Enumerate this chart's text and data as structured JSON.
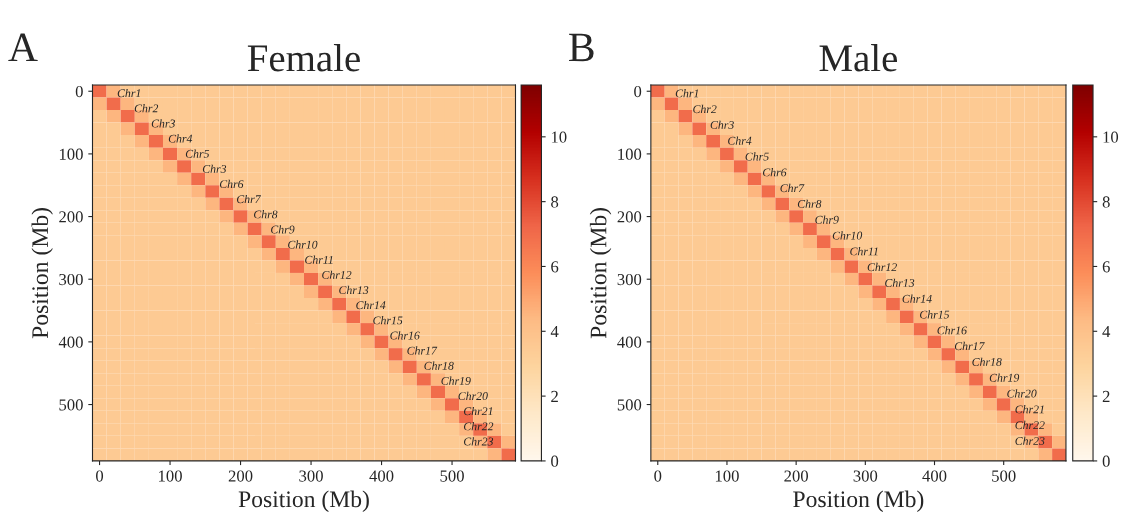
{
  "chart_data": [
    {
      "type": "heatmap",
      "title": "Female",
      "xlabel": "Position (Mb)",
      "ylabel": "Position (Mb)",
      "categories": [
        "0",
        null,
        null,
        null,
        null,
        "100",
        null,
        null,
        null,
        null,
        "200",
        null,
        null,
        null,
        null,
        "300",
        null,
        null,
        null,
        null,
        "400",
        null,
        null,
        null,
        null,
        "500",
        null,
        null,
        null,
        null
      ],
      "y_categories": [
        "0",
        null,
        null,
        null,
        null,
        "100",
        null,
        null,
        null,
        null,
        "200",
        null,
        null,
        null,
        null,
        "300",
        null,
        null,
        null,
        null,
        "400",
        null,
        null,
        null,
        null,
        "500",
        null,
        null,
        null,
        null
      ],
      "cells": [
        [
          7,
          4.5,
          3.5,
          3.5,
          3.5,
          3.5,
          3.5,
          3.5,
          3.5,
          3.5,
          3.5,
          3.5,
          3.5,
          3.5,
          3.5,
          3.5,
          3.5,
          3.5,
          3.5,
          3.5,
          3.5,
          3.5,
          3.5,
          3.5,
          3.5,
          3.5,
          3.5,
          3.5,
          3.5,
          3.5
        ],
        [
          4.5,
          7,
          4.5,
          3.5,
          3.5,
          3.5,
          3.5,
          3.5,
          3.5,
          3.5,
          3.5,
          3.5,
          3.5,
          3.5,
          3.5,
          3.5,
          3.5,
          3.5,
          3.5,
          3.5,
          3.5,
          3.5,
          3.5,
          3.5,
          3.5,
          3.5,
          3.5,
          3.5,
          3.5,
          3.5
        ],
        [
          3.5,
          4.5,
          7,
          4.5,
          3.5,
          3.5,
          3.5,
          3.5,
          3.5,
          3.5,
          3.5,
          3.5,
          3.5,
          3.5,
          3.5,
          3.5,
          3.5,
          3.5,
          3.5,
          3.5,
          3.5,
          3.5,
          3.5,
          3.5,
          3.5,
          3.5,
          3.5,
          3.5,
          3.5,
          3.5
        ],
        [
          3.5,
          3.5,
          4.5,
          7,
          4.5,
          3.5,
          3.5,
          3.5,
          3.5,
          3.5,
          3.5,
          3.5,
          3.5,
          3.5,
          3.5,
          3.5,
          3.5,
          3.5,
          3.5,
          3.5,
          3.5,
          3.5,
          3.5,
          3.5,
          3.5,
          3.5,
          3.5,
          3.5,
          3.5,
          3.5
        ],
        [
          3.5,
          3.5,
          3.5,
          4.5,
          7,
          4.5,
          3.5,
          3.5,
          3.5,
          3.5,
          3.5,
          3.5,
          3.5,
          3.5,
          3.5,
          3.5,
          3.5,
          3.5,
          3.5,
          3.5,
          3.5,
          3.5,
          3.5,
          3.5,
          3.5,
          3.5,
          3.5,
          3.5,
          3.5,
          3.5
        ],
        [
          3.5,
          3.5,
          3.5,
          3.5,
          4.5,
          7,
          4.5,
          3.5,
          3.5,
          3.5,
          3.5,
          3.5,
          3.5,
          3.5,
          3.5,
          3.5,
          3.5,
          3.5,
          3.5,
          3.5,
          3.5,
          3.5,
          3.5,
          3.5,
          3.5,
          3.5,
          3.5,
          3.5,
          3.5,
          3.5
        ],
        [
          3.5,
          3.5,
          3.5,
          3.5,
          3.5,
          4.5,
          7,
          4.5,
          3.5,
          3.5,
          3.5,
          3.5,
          3.5,
          3.5,
          3.5,
          3.5,
          3.5,
          3.5,
          3.5,
          3.5,
          3.5,
          3.5,
          3.5,
          3.5,
          3.5,
          3.5,
          3.5,
          3.5,
          3.5,
          3.5
        ],
        [
          3.5,
          3.5,
          3.5,
          3.5,
          3.5,
          3.5,
          4.5,
          7,
          4.5,
          3.5,
          3.5,
          3.5,
          3.5,
          3.5,
          3.5,
          3.5,
          3.5,
          3.5,
          3.5,
          3.5,
          3.5,
          3.5,
          3.5,
          3.5,
          3.5,
          3.5,
          3.5,
          3.5,
          3.5,
          3.5
        ],
        [
          3.5,
          3.5,
          3.5,
          3.5,
          3.5,
          3.5,
          3.5,
          4.5,
          7,
          4.5,
          3.5,
          3.5,
          3.5,
          3.5,
          3.5,
          3.5,
          3.5,
          3.5,
          3.5,
          3.5,
          3.5,
          3.5,
          3.5,
          3.5,
          3.5,
          3.5,
          3.5,
          3.5,
          3.5,
          3.5
        ],
        [
          3.5,
          3.5,
          3.5,
          3.5,
          3.5,
          3.5,
          3.5,
          3.5,
          4.5,
          7,
          4.5,
          3.5,
          3.5,
          3.5,
          3.5,
          3.5,
          3.5,
          3.5,
          3.5,
          3.5,
          3.5,
          3.5,
          3.5,
          3.5,
          3.5,
          3.5,
          3.5,
          3.5,
          3.5,
          3.5
        ],
        [
          3.5,
          3.5,
          3.5,
          3.5,
          3.5,
          3.5,
          3.5,
          3.5,
          3.5,
          4.5,
          7,
          4.5,
          3.5,
          3.5,
          3.5,
          3.5,
          3.5,
          3.5,
          3.5,
          3.5,
          3.5,
          3.5,
          3.5,
          3.5,
          3.5,
          3.5,
          3.5,
          3.5,
          3.5,
          3.5
        ],
        [
          3.5,
          3.5,
          3.5,
          3.5,
          3.5,
          3.5,
          3.5,
          3.5,
          3.5,
          3.5,
          4.5,
          7,
          4.5,
          3.5,
          3.5,
          3.5,
          3.5,
          3.5,
          3.5,
          3.5,
          3.5,
          3.5,
          3.5,
          3.5,
          3.5,
          3.5,
          3.5,
          3.5,
          3.5,
          3.5
        ],
        [
          3.5,
          3.5,
          3.5,
          3.5,
          3.5,
          3.5,
          3.5,
          3.5,
          3.5,
          3.5,
          3.5,
          4.5,
          7,
          4.5,
          3.5,
          3.5,
          3.5,
          3.5,
          3.5,
          3.5,
          3.5,
          3.5,
          3.5,
          3.5,
          3.5,
          3.5,
          3.5,
          3.5,
          3.5,
          3.5
        ],
        [
          3.5,
          3.5,
          3.5,
          3.5,
          3.5,
          3.5,
          3.5,
          3.5,
          3.5,
          3.5,
          3.5,
          3.5,
          4.5,
          7,
          4.5,
          3.5,
          3.5,
          3.5,
          3.5,
          3.5,
          3.5,
          3.5,
          3.5,
          3.5,
          3.5,
          3.5,
          3.5,
          3.5,
          3.5,
          3.5
        ],
        [
          3.5,
          3.5,
          3.5,
          3.5,
          3.5,
          3.5,
          3.5,
          3.5,
          3.5,
          3.5,
          3.5,
          3.5,
          3.5,
          4.5,
          7,
          4.5,
          3.5,
          3.5,
          3.5,
          3.5,
          3.5,
          3.5,
          3.5,
          3.5,
          3.5,
          3.5,
          3.5,
          3.5,
          3.5,
          3.5
        ],
        [
          3.5,
          3.5,
          3.5,
          3.5,
          3.5,
          3.5,
          3.5,
          3.5,
          3.5,
          3.5,
          3.5,
          3.5,
          3.5,
          3.5,
          4.5,
          7,
          4.5,
          3.5,
          3.5,
          3.5,
          3.5,
          3.5,
          3.5,
          3.5,
          3.5,
          3.5,
          3.5,
          3.5,
          3.5,
          3.5
        ],
        [
          3.5,
          3.5,
          3.5,
          3.5,
          3.5,
          3.5,
          3.5,
          3.5,
          3.5,
          3.5,
          3.5,
          3.5,
          3.5,
          3.5,
          3.5,
          4.5,
          7,
          4.5,
          3.5,
          3.5,
          3.5,
          3.5,
          3.5,
          3.5,
          3.5,
          3.5,
          3.5,
          3.5,
          3.5,
          3.5
        ],
        [
          3.5,
          3.5,
          3.5,
          3.5,
          3.5,
          3.5,
          3.5,
          3.5,
          3.5,
          3.5,
          3.5,
          3.5,
          3.5,
          3.5,
          3.5,
          3.5,
          4.5,
          7,
          4.5,
          3.5,
          3.5,
          3.5,
          3.5,
          3.5,
          3.5,
          3.5,
          3.5,
          3.5,
          3.5,
          3.5
        ],
        [
          3.5,
          3.5,
          3.5,
          3.5,
          3.5,
          3.5,
          3.5,
          3.5,
          3.5,
          3.5,
          3.5,
          3.5,
          3.5,
          3.5,
          3.5,
          3.5,
          3.5,
          4.5,
          7,
          4.5,
          3.5,
          3.5,
          3.5,
          3.5,
          3.5,
          3.5,
          3.5,
          3.5,
          3.5,
          3.5
        ],
        [
          3.5,
          3.5,
          3.5,
          3.5,
          3.5,
          3.5,
          3.5,
          3.5,
          3.5,
          3.5,
          3.5,
          3.5,
          3.5,
          3.5,
          3.5,
          3.5,
          3.5,
          3.5,
          4.5,
          7,
          4.5,
          3.5,
          3.5,
          3.5,
          3.5,
          3.5,
          3.5,
          3.5,
          3.5,
          3.5
        ],
        [
          3.5,
          3.5,
          3.5,
          3.5,
          3.5,
          3.5,
          3.5,
          3.5,
          3.5,
          3.5,
          3.5,
          3.5,
          3.5,
          3.5,
          3.5,
          3.5,
          3.5,
          3.5,
          3.5,
          4.5,
          7,
          4.5,
          3.5,
          3.5,
          3.5,
          3.5,
          3.5,
          3.5,
          3.5,
          3.5
        ],
        [
          3.5,
          3.5,
          3.5,
          3.5,
          3.5,
          3.5,
          3.5,
          3.5,
          3.5,
          3.5,
          3.5,
          3.5,
          3.5,
          3.5,
          3.5,
          3.5,
          3.5,
          3.5,
          3.5,
          3.5,
          4.5,
          7,
          4.5,
          3.5,
          3.5,
          3.5,
          3.5,
          3.5,
          3.5,
          3.5
        ],
        [
          3.5,
          3.5,
          3.5,
          3.5,
          3.5,
          3.5,
          3.5,
          3.5,
          3.5,
          3.5,
          3.5,
          3.5,
          3.5,
          3.5,
          3.5,
          3.5,
          3.5,
          3.5,
          3.5,
          3.5,
          3.5,
          4.5,
          7,
          4.5,
          3.5,
          3.5,
          3.5,
          3.5,
          3.5,
          3.5
        ],
        [
          3.5,
          3.5,
          3.5,
          3.5,
          3.5,
          3.5,
          3.5,
          3.5,
          3.5,
          3.5,
          3.5,
          3.5,
          3.5,
          3.5,
          3.5,
          3.5,
          3.5,
          3.5,
          3.5,
          3.5,
          3.5,
          3.5,
          4.5,
          7,
          4.5,
          3.5,
          3.5,
          3.5,
          3.5,
          3.5
        ],
        [
          3.5,
          3.5,
          3.5,
          3.5,
          3.5,
          3.5,
          3.5,
          3.5,
          3.5,
          3.5,
          3.5,
          3.5,
          3.5,
          3.5,
          3.5,
          3.5,
          3.5,
          3.5,
          3.5,
          3.5,
          3.5,
          3.5,
          3.5,
          4.5,
          7,
          4.5,
          3.5,
          3.5,
          3.5,
          3.5
        ],
        [
          3.5,
          3.5,
          3.5,
          3.5,
          3.5,
          3.5,
          3.5,
          3.5,
          3.5,
          3.5,
          3.5,
          3.5,
          3.5,
          3.5,
          3.5,
          3.5,
          3.5,
          3.5,
          3.5,
          3.5,
          3.5,
          3.5,
          3.5,
          3.5,
          4.5,
          7,
          4.5,
          3.5,
          3.5,
          3.5
        ],
        [
          3.5,
          3.5,
          3.5,
          3.5,
          3.5,
          3.5,
          3.5,
          3.5,
          3.5,
          3.5,
          3.5,
          3.5,
          3.5,
          3.5,
          3.5,
          3.5,
          3.5,
          3.5,
          3.5,
          3.5,
          3.5,
          3.5,
          3.5,
          3.5,
          3.5,
          4.5,
          7,
          4.5,
          3.5,
          3.5
        ],
        [
          3.5,
          3.5,
          3.5,
          3.5,
          3.5,
          3.5,
          3.5,
          3.5,
          3.5,
          3.5,
          3.5,
          3.5,
          3.5,
          3.5,
          3.5,
          3.5,
          3.5,
          3.5,
          3.5,
          3.5,
          3.5,
          3.5,
          3.5,
          3.5,
          3.5,
          3.5,
          4.5,
          7,
          4.5,
          3.5
        ],
        [
          3.5,
          3.5,
          3.5,
          3.5,
          3.5,
          3.5,
          3.5,
          3.5,
          3.5,
          3.5,
          3.5,
          3.5,
          3.5,
          3.5,
          3.5,
          3.5,
          3.5,
          3.5,
          3.5,
          3.5,
          3.5,
          3.5,
          3.5,
          3.5,
          3.5,
          3.5,
          3.5,
          4.5,
          7,
          4.5
        ],
        [
          3.5,
          3.5,
          3.5,
          3.5,
          3.5,
          3.5,
          3.5,
          3.5,
          3.5,
          3.5,
          3.5,
          3.5,
          3.5,
          3.5,
          3.5,
          3.5,
          3.5,
          3.5,
          3.5,
          3.5,
          3.5,
          3.5,
          3.5,
          3.5,
          3.5,
          3.5,
          3.5,
          3.5,
          4.5,
          7
        ]
      ],
      "clim": [
        0,
        11.6
      ],
      "cticks": [
        0,
        2,
        4,
        6,
        8,
        10
      ],
      "annotations": [
        "A",
        "Chr1",
        "Chr2",
        "Chr3",
        "Chr4",
        "Chr5",
        "Chr3",
        "Chr6",
        "Chr7",
        "Chr8",
        "Chr9",
        "Chr10",
        "Chr11",
        "Chr12",
        "Chr13",
        "Chr14",
        "Chr15",
        "Chr16",
        "Chr17",
        "Chr18",
        "Chr19",
        "Chr20",
        "Chr21",
        "Chr22",
        "Chr23"
      ]
    },
    {
      "type": "heatmap",
      "title": "Male",
      "xlabel": "Position (Mb)",
      "ylabel": "Position (Mb)",
      "categories": [
        "0",
        null,
        null,
        null,
        null,
        "100",
        null,
        null,
        null,
        null,
        "200",
        null,
        null,
        null,
        null,
        "300",
        null,
        null,
        null,
        null,
        "400",
        null,
        null,
        null,
        null,
        "500",
        null,
        null,
        null,
        null
      ],
      "y_categories": [
        "0",
        null,
        null,
        null,
        null,
        "100",
        null,
        null,
        null,
        null,
        "200",
        null,
        null,
        null,
        null,
        "300",
        null,
        null,
        null,
        null,
        "400",
        null,
        null,
        null,
        null,
        "500",
        null,
        null,
        null,
        null
      ],
      "cells": [
        [
          7,
          4.5,
          3.5,
          3.5,
          3.5,
          3.5,
          3.5,
          3.5,
          3.5,
          3.5,
          3.5,
          3.5,
          3.5,
          3.5,
          3.5,
          3.5,
          3.5,
          3.5,
          3.5,
          3.5,
          3.5,
          3.5,
          3.5,
          3.5,
          3.5,
          3.5,
          3.5,
          3.5,
          3.5,
          3.5
        ],
        [
          4.5,
          7,
          4.5,
          3.5,
          3.5,
          3.5,
          3.5,
          3.5,
          3.5,
          3.5,
          3.5,
          3.5,
          3.5,
          3.5,
          3.5,
          3.5,
          3.5,
          3.5,
          3.5,
          3.5,
          3.5,
          3.5,
          3.5,
          3.5,
          3.5,
          3.5,
          3.5,
          3.5,
          3.5,
          3.5
        ],
        [
          3.5,
          4.5,
          7,
          4.5,
          3.5,
          3.5,
          3.5,
          3.5,
          3.5,
          3.5,
          3.5,
          3.5,
          3.5,
          3.5,
          3.5,
          3.5,
          3.5,
          3.5,
          3.5,
          3.5,
          3.5,
          3.5,
          3.5,
          3.5,
          3.5,
          3.5,
          3.5,
          3.5,
          3.5,
          3.5
        ],
        [
          3.5,
          3.5,
          4.5,
          7,
          4.5,
          3.5,
          3.5,
          3.5,
          3.5,
          3.5,
          3.5,
          3.5,
          3.5,
          3.5,
          3.5,
          3.5,
          3.5,
          3.5,
          3.5,
          3.5,
          3.5,
          3.5,
          3.5,
          3.5,
          3.5,
          3.5,
          3.5,
          3.5,
          3.5,
          3.5
        ],
        [
          3.5,
          3.5,
          3.5,
          4.5,
          7,
          4.5,
          3.5,
          3.5,
          3.5,
          3.5,
          3.5,
          3.5,
          3.5,
          3.5,
          3.5,
          3.5,
          3.5,
          3.5,
          3.5,
          3.5,
          3.5,
          3.5,
          3.5,
          3.5,
          3.5,
          3.5,
          3.5,
          3.5,
          3.5,
          3.5
        ],
        [
          3.5,
          3.5,
          3.5,
          3.5,
          4.5,
          7,
          4.5,
          3.5,
          3.5,
          3.5,
          3.5,
          3.5,
          3.5,
          3.5,
          3.5,
          3.5,
          3.5,
          3.5,
          3.5,
          3.5,
          3.5,
          3.5,
          3.5,
          3.5,
          3.5,
          3.5,
          3.5,
          3.5,
          3.5,
          3.5
        ],
        [
          3.5,
          3.5,
          3.5,
          3.5,
          3.5,
          4.5,
          7,
          4.5,
          3.5,
          3.5,
          3.5,
          3.5,
          3.5,
          3.5,
          3.5,
          3.5,
          3.5,
          3.5,
          3.5,
          3.5,
          3.5,
          3.5,
          3.5,
          3.5,
          3.5,
          3.5,
          3.5,
          3.5,
          3.5,
          3.5
        ],
        [
          3.5,
          3.5,
          3.5,
          3.5,
          3.5,
          3.5,
          4.5,
          7,
          4.5,
          3.5,
          3.5,
          3.5,
          3.5,
          3.5,
          3.5,
          3.5,
          3.5,
          3.5,
          3.5,
          3.5,
          3.5,
          3.5,
          3.5,
          3.5,
          3.5,
          3.5,
          3.5,
          3.5,
          3.5,
          3.5
        ],
        [
          3.5,
          3.5,
          3.5,
          3.5,
          3.5,
          3.5,
          3.5,
          4.5,
          7,
          4.5,
          3.5,
          3.5,
          3.5,
          3.5,
          3.5,
          3.5,
          3.5,
          3.5,
          3.5,
          3.5,
          3.5,
          3.5,
          3.5,
          3.5,
          3.5,
          3.5,
          3.5,
          3.5,
          3.5,
          3.5
        ],
        [
          3.5,
          3.5,
          3.5,
          3.5,
          3.5,
          3.5,
          3.5,
          3.5,
          4.5,
          7,
          4.5,
          3.5,
          3.5,
          3.5,
          3.5,
          3.5,
          3.5,
          3.5,
          3.5,
          3.5,
          3.5,
          3.5,
          3.5,
          3.5,
          3.5,
          3.5,
          3.5,
          3.5,
          3.5,
          3.5
        ],
        [
          3.5,
          3.5,
          3.5,
          3.5,
          3.5,
          3.5,
          3.5,
          3.5,
          3.5,
          4.5,
          7,
          4.5,
          3.5,
          3.5,
          3.5,
          3.5,
          3.5,
          3.5,
          3.5,
          3.5,
          3.5,
          3.5,
          3.5,
          3.5,
          3.5,
          3.5,
          3.5,
          3.5,
          3.5,
          3.5
        ],
        [
          3.5,
          3.5,
          3.5,
          3.5,
          3.5,
          3.5,
          3.5,
          3.5,
          3.5,
          3.5,
          4.5,
          7,
          4.5,
          3.5,
          3.5,
          3.5,
          3.5,
          3.5,
          3.5,
          3.5,
          3.5,
          3.5,
          3.5,
          3.5,
          3.5,
          3.5,
          3.5,
          3.5,
          3.5,
          3.5
        ],
        [
          3.5,
          3.5,
          3.5,
          3.5,
          3.5,
          3.5,
          3.5,
          3.5,
          3.5,
          3.5,
          3.5,
          4.5,
          7,
          4.5,
          3.5,
          3.5,
          3.5,
          3.5,
          3.5,
          3.5,
          3.5,
          3.5,
          3.5,
          3.5,
          3.5,
          3.5,
          3.5,
          3.5,
          3.5,
          3.5
        ],
        [
          3.5,
          3.5,
          3.5,
          3.5,
          3.5,
          3.5,
          3.5,
          3.5,
          3.5,
          3.5,
          3.5,
          3.5,
          4.5,
          7,
          4.5,
          3.5,
          3.5,
          3.5,
          3.5,
          3.5,
          3.5,
          3.5,
          3.5,
          3.5,
          3.5,
          3.5,
          3.5,
          3.5,
          3.5,
          3.5
        ],
        [
          3.5,
          3.5,
          3.5,
          3.5,
          3.5,
          3.5,
          3.5,
          3.5,
          3.5,
          3.5,
          3.5,
          3.5,
          3.5,
          4.5,
          7,
          4.5,
          3.5,
          3.5,
          3.5,
          3.5,
          3.5,
          3.5,
          3.5,
          3.5,
          3.5,
          3.5,
          3.5,
          3.5,
          3.5,
          3.5
        ],
        [
          3.5,
          3.5,
          3.5,
          3.5,
          3.5,
          3.5,
          3.5,
          3.5,
          3.5,
          3.5,
          3.5,
          3.5,
          3.5,
          3.5,
          4.5,
          7,
          4.5,
          3.5,
          3.5,
          3.5,
          3.5,
          3.5,
          3.5,
          3.5,
          3.5,
          3.5,
          3.5,
          3.5,
          3.5,
          3.5
        ],
        [
          3.5,
          3.5,
          3.5,
          3.5,
          3.5,
          3.5,
          3.5,
          3.5,
          3.5,
          3.5,
          3.5,
          3.5,
          3.5,
          3.5,
          3.5,
          4.5,
          7,
          4.5,
          3.5,
          3.5,
          3.5,
          3.5,
          3.5,
          3.5,
          3.5,
          3.5,
          3.5,
          3.5,
          3.5,
          3.5
        ],
        [
          3.5,
          3.5,
          3.5,
          3.5,
          3.5,
          3.5,
          3.5,
          3.5,
          3.5,
          3.5,
          3.5,
          3.5,
          3.5,
          3.5,
          3.5,
          3.5,
          4.5,
          7,
          4.5,
          3.5,
          3.5,
          3.5,
          3.5,
          3.5,
          3.5,
          3.5,
          3.5,
          3.5,
          3.5,
          3.5
        ],
        [
          3.5,
          3.5,
          3.5,
          3.5,
          3.5,
          3.5,
          3.5,
          3.5,
          3.5,
          3.5,
          3.5,
          3.5,
          3.5,
          3.5,
          3.5,
          3.5,
          3.5,
          4.5,
          7,
          4.5,
          3.5,
          3.5,
          3.5,
          3.5,
          3.5,
          3.5,
          3.5,
          3.5,
          3.5,
          3.5
        ],
        [
          3.5,
          3.5,
          3.5,
          3.5,
          3.5,
          3.5,
          3.5,
          3.5,
          3.5,
          3.5,
          3.5,
          3.5,
          3.5,
          3.5,
          3.5,
          3.5,
          3.5,
          3.5,
          4.5,
          7,
          4.5,
          3.5,
          3.5,
          3.5,
          3.5,
          3.5,
          3.5,
          3.5,
          3.5,
          3.5
        ],
        [
          3.5,
          3.5,
          3.5,
          3.5,
          3.5,
          3.5,
          3.5,
          3.5,
          3.5,
          3.5,
          3.5,
          3.5,
          3.5,
          3.5,
          3.5,
          3.5,
          3.5,
          3.5,
          3.5,
          4.5,
          7,
          4.5,
          3.5,
          3.5,
          3.5,
          3.5,
          3.5,
          3.5,
          3.5,
          3.5
        ],
        [
          3.5,
          3.5,
          3.5,
          3.5,
          3.5,
          3.5,
          3.5,
          3.5,
          3.5,
          3.5,
          3.5,
          3.5,
          3.5,
          3.5,
          3.5,
          3.5,
          3.5,
          3.5,
          3.5,
          3.5,
          4.5,
          7,
          4.5,
          3.5,
          3.5,
          3.5,
          3.5,
          3.5,
          3.5,
          3.5
        ],
        [
          3.5,
          3.5,
          3.5,
          3.5,
          3.5,
          3.5,
          3.5,
          3.5,
          3.5,
          3.5,
          3.5,
          3.5,
          3.5,
          3.5,
          3.5,
          3.5,
          3.5,
          3.5,
          3.5,
          3.5,
          3.5,
          4.5,
          7,
          4.5,
          3.5,
          3.5,
          3.5,
          3.5,
          3.5,
          3.5
        ],
        [
          3.5,
          3.5,
          3.5,
          3.5,
          3.5,
          3.5,
          3.5,
          3.5,
          3.5,
          3.5,
          3.5,
          3.5,
          3.5,
          3.5,
          3.5,
          3.5,
          3.5,
          3.5,
          3.5,
          3.5,
          3.5,
          3.5,
          4.5,
          7,
          4.5,
          3.5,
          3.5,
          3.5,
          3.5,
          3.5
        ],
        [
          3.5,
          3.5,
          3.5,
          3.5,
          3.5,
          3.5,
          3.5,
          3.5,
          3.5,
          3.5,
          3.5,
          3.5,
          3.5,
          3.5,
          3.5,
          3.5,
          3.5,
          3.5,
          3.5,
          3.5,
          3.5,
          3.5,
          3.5,
          4.5,
          7,
          4.5,
          3.5,
          3.5,
          3.5,
          3.5
        ],
        [
          3.5,
          3.5,
          3.5,
          3.5,
          3.5,
          3.5,
          3.5,
          3.5,
          3.5,
          3.5,
          3.5,
          3.5,
          3.5,
          3.5,
          3.5,
          3.5,
          3.5,
          3.5,
          3.5,
          3.5,
          3.5,
          3.5,
          3.5,
          3.5,
          4.5,
          7,
          4.5,
          3.5,
          3.5,
          3.5
        ],
        [
          3.5,
          3.5,
          3.5,
          3.5,
          3.5,
          3.5,
          3.5,
          3.5,
          3.5,
          3.5,
          3.5,
          3.5,
          3.5,
          3.5,
          3.5,
          3.5,
          3.5,
          3.5,
          3.5,
          3.5,
          3.5,
          3.5,
          3.5,
          3.5,
          3.5,
          4.5,
          7,
          4.5,
          3.5,
          3.5
        ],
        [
          3.5,
          3.5,
          3.5,
          3.5,
          3.5,
          3.5,
          3.5,
          3.5,
          3.5,
          3.5,
          3.5,
          3.5,
          3.5,
          3.5,
          3.5,
          3.5,
          3.5,
          3.5,
          3.5,
          3.5,
          3.5,
          3.5,
          3.5,
          3.5,
          3.5,
          3.5,
          4.5,
          7,
          4.5,
          3.5
        ],
        [
          3.5,
          3.5,
          3.5,
          3.5,
          3.5,
          3.5,
          3.5,
          3.5,
          3.5,
          3.5,
          3.5,
          3.5,
          3.5,
          3.5,
          3.5,
          3.5,
          3.5,
          3.5,
          3.5,
          3.5,
          3.5,
          3.5,
          3.5,
          3.5,
          3.5,
          3.5,
          3.5,
          4.5,
          7,
          4.5
        ],
        [
          3.5,
          3.5,
          3.5,
          3.5,
          3.5,
          3.5,
          3.5,
          3.5,
          3.5,
          3.5,
          3.5,
          3.5,
          3.5,
          3.5,
          3.5,
          3.5,
          3.5,
          3.5,
          3.5,
          3.5,
          3.5,
          3.5,
          3.5,
          3.5,
          3.5,
          3.5,
          3.5,
          3.5,
          4.5,
          7
        ]
      ],
      "clim": [
        0,
        11.6
      ],
      "cticks": [
        0,
        2,
        4,
        6,
        8,
        10
      ],
      "annotations": [
        "B",
        "Chr1",
        "Chr2",
        "Chr3",
        "Chr4",
        "Chr5",
        "Chr6",
        "Chr7",
        "Chr8",
        "Chr9",
        "Chr10",
        "Chr11",
        "Chr12",
        "Chr13",
        "Chr14",
        "Chr15",
        "Chr16",
        "Chr17",
        "Chr18",
        "Chr19",
        "Chr20",
        "Chr21",
        "Chr22",
        "Chr23"
      ]
    }
  ]
}
